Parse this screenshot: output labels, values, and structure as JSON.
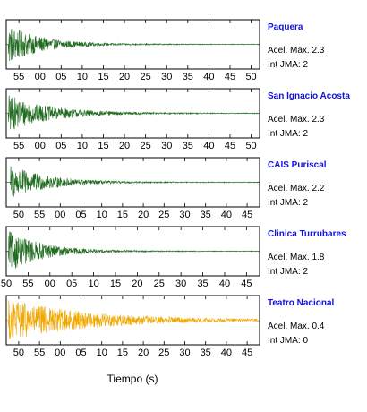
{
  "chart_data": {
    "type": "line",
    "xlabel": "Tiempo (s)",
    "panels": [
      {
        "station": "Paquera",
        "acel_label": "Acel. Max.",
        "acel_value": "2.3",
        "int_label": "Int JMA:",
        "int_value": "2",
        "color": "#1f6b1f",
        "xlim": [
          52,
          112
        ],
        "tick_values": [
          55,
          60,
          65,
          70,
          75,
          80,
          85,
          90,
          95,
          100,
          105,
          110
        ],
        "tick_labels": [
          "55",
          "00",
          "05",
          "10",
          "15",
          "20",
          "25",
          "30",
          "35",
          "40",
          "45",
          "50"
        ],
        "amplitude": 0.85,
        "decay": 0.09,
        "onset": 52.5
      },
      {
        "station": "San Ignacio Acosta",
        "acel_label": "Acel. Max.",
        "acel_value": "2.3",
        "int_label": "Int JMA:",
        "int_value": "2",
        "color": "#1f6b1f",
        "xlim": [
          52,
          112
        ],
        "tick_values": [
          55,
          60,
          65,
          70,
          75,
          80,
          85,
          90,
          95,
          100,
          105,
          110
        ],
        "tick_labels": [
          "55",
          "00",
          "05",
          "10",
          "15",
          "20",
          "25",
          "30",
          "35",
          "40",
          "45",
          "50"
        ],
        "amplitude": 0.8,
        "decay": 0.07,
        "onset": 52.5
      },
      {
        "station": "CAIS Puriscal",
        "acel_label": "Acel. Max.",
        "acel_value": "2.2",
        "int_label": "Int JMA:",
        "int_value": "2",
        "color": "#1f6b1f",
        "xlim": [
          47,
          108
        ],
        "tick_values": [
          50,
          55,
          60,
          65,
          70,
          75,
          80,
          85,
          90,
          95,
          100,
          105
        ],
        "tick_labels": [
          "50",
          "55",
          "00",
          "05",
          "10",
          "15",
          "20",
          "25",
          "30",
          "35",
          "40",
          "45"
        ],
        "amplitude": 0.75,
        "decay": 0.08,
        "onset": 48
      },
      {
        "station": "Clinica Turrubares",
        "acel_label": "Acel. Max.",
        "acel_value": "1.8",
        "int_label": "Int JMA:",
        "int_value": "2",
        "color": "#1f6b1f",
        "xlim": [
          50,
          108
        ],
        "tick_values": [
          50,
          55,
          60,
          65,
          70,
          75,
          80,
          85,
          90,
          95,
          100,
          105
        ],
        "tick_labels": [
          "50",
          "55",
          "00",
          "05",
          "10",
          "15",
          "20",
          "25",
          "30",
          "35",
          "40",
          "45"
        ],
        "amplitude": 0.9,
        "decay": 0.09,
        "onset": 50.5
      },
      {
        "station": "Teatro Nacional",
        "acel_label": "Acel. Max.",
        "acel_value": "0.4",
        "int_label": "Int JMA:",
        "int_value": "0",
        "color": "#f0a800",
        "xlim": [
          47,
          108
        ],
        "tick_values": [
          50,
          55,
          60,
          65,
          70,
          75,
          80,
          85,
          90,
          95,
          100,
          105
        ],
        "tick_labels": [
          "50",
          "55",
          "00",
          "05",
          "10",
          "15",
          "20",
          "25",
          "30",
          "35",
          "40",
          "45"
        ],
        "amplitude": 0.9,
        "decay": 0.035,
        "onset": 47.5
      }
    ]
  }
}
